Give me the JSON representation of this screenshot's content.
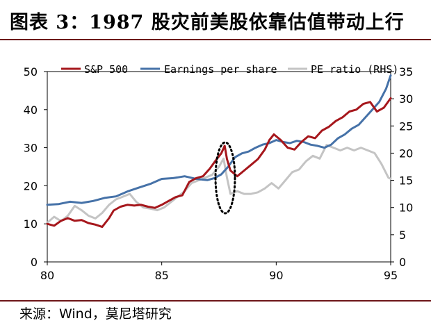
{
  "title": "图表 3：1987 股灾前美股依靠估值带动上行",
  "source": "来源：Wind，莫尼塔研究",
  "colors": {
    "sp500": "#a6171c",
    "earnings": "#4672a8",
    "pe": "#c4c4c4",
    "rule": "#6d1417",
    "ellipse": "#000000"
  },
  "chart_data": {
    "type": "line",
    "x_axis": {
      "ticks": [
        80,
        85,
        90,
        95
      ],
      "range": [
        80,
        95
      ]
    },
    "y_left": {
      "ticks": [
        0,
        10,
        20,
        30,
        40,
        50
      ],
      "range": [
        0,
        50
      ]
    },
    "y_right": {
      "ticks": [
        0,
        5,
        10,
        15,
        20,
        25,
        30,
        35
      ],
      "range": [
        0,
        35
      ]
    },
    "legend_position": "top",
    "grid": false,
    "annotation": "dotted ellipse around 1987 crash",
    "series": [
      {
        "name": "S&P 500",
        "axis": "left",
        "x": [
          80,
          80.3,
          80.6,
          80.9,
          81.2,
          81.5,
          81.8,
          82.1,
          82.4,
          82.7,
          82.9,
          83.2,
          83.5,
          83.8,
          84.1,
          84.4,
          84.7,
          85.0,
          85.3,
          85.6,
          85.9,
          86.2,
          86.5,
          86.8,
          87.1,
          87.4,
          87.6,
          87.75,
          87.85,
          88.0,
          88.3,
          88.6,
          88.9,
          89.2,
          89.5,
          89.7,
          89.9,
          90.2,
          90.5,
          90.8,
          91.1,
          91.4,
          91.7,
          92.0,
          92.3,
          92.6,
          92.9,
          93.2,
          93.5,
          93.8,
          94.1,
          94.4,
          94.7,
          95.0
        ],
        "values": [
          10.0,
          9.5,
          10.8,
          11.5,
          10.8,
          11.0,
          10.2,
          9.8,
          9.2,
          11.5,
          13.5,
          14.5,
          15.0,
          14.8,
          15.0,
          14.5,
          14.2,
          15.0,
          16.0,
          17.0,
          17.5,
          21.0,
          22.0,
          22.5,
          24.5,
          27.0,
          28.5,
          30.5,
          27.0,
          24.0,
          22.5,
          24.0,
          25.5,
          27.0,
          29.5,
          32.0,
          33.5,
          32.0,
          30.0,
          29.5,
          31.5,
          33.0,
          32.5,
          34.5,
          35.5,
          37.0,
          38.0,
          39.5,
          40.0,
          41.5,
          42.0,
          39.5,
          40.5,
          43.0
        ]
      },
      {
        "name": "Earnings per share",
        "axis": "left",
        "x": [
          80,
          80.5,
          81.0,
          81.5,
          82.0,
          82.5,
          83.0,
          83.5,
          84.0,
          84.5,
          85.0,
          85.5,
          86.0,
          86.5,
          87.0,
          87.3,
          87.6,
          87.9,
          88.2,
          88.5,
          88.8,
          89.1,
          89.4,
          89.7,
          90.0,
          90.3,
          90.6,
          90.9,
          91.2,
          91.5,
          91.8,
          92.1,
          92.4,
          92.7,
          93.0,
          93.3,
          93.6,
          93.9,
          94.2,
          94.5,
          94.8,
          95.0
        ],
        "values": [
          15.0,
          15.2,
          15.8,
          15.5,
          16.0,
          16.8,
          17.2,
          18.5,
          19.5,
          20.5,
          21.8,
          22.0,
          22.5,
          21.8,
          21.5,
          22.0,
          23.0,
          25.0,
          27.5,
          28.5,
          29.0,
          30.0,
          30.8,
          31.2,
          32.0,
          31.5,
          31.2,
          31.8,
          31.5,
          30.8,
          30.5,
          30.0,
          30.8,
          32.5,
          33.5,
          35.0,
          36.0,
          38.0,
          40.0,
          42.0,
          45.5,
          49.0
        ]
      },
      {
        "name": "PE ratio (RHS)",
        "axis": "right",
        "x": [
          80,
          80.3,
          80.6,
          80.9,
          81.2,
          81.5,
          81.8,
          82.1,
          82.4,
          82.7,
          83.0,
          83.3,
          83.6,
          83.9,
          84.2,
          84.5,
          84.8,
          85.1,
          85.4,
          85.7,
          86.0,
          86.3,
          86.6,
          86.9,
          87.2,
          87.5,
          87.7,
          87.85,
          88.0,
          88.3,
          88.6,
          88.9,
          89.2,
          89.5,
          89.8,
          90.1,
          90.4,
          90.7,
          91.0,
          91.3,
          91.6,
          91.9,
          92.2,
          92.5,
          92.8,
          93.1,
          93.4,
          93.7,
          94.0,
          94.3,
          94.6,
          94.9,
          95.0
        ],
        "values": [
          7.2,
          8.3,
          7.5,
          8.5,
          10.3,
          9.5,
          8.5,
          8.0,
          9.0,
          10.5,
          11.5,
          12.0,
          12.5,
          11.0,
          10.0,
          9.8,
          9.5,
          10.0,
          11.0,
          12.0,
          13.0,
          14.5,
          15.0,
          15.5,
          16.0,
          17.5,
          19.0,
          15.5,
          12.5,
          13.0,
          12.5,
          12.5,
          12.8,
          13.5,
          14.5,
          13.5,
          15.0,
          16.5,
          17.0,
          18.5,
          19.5,
          19.0,
          21.5,
          21.0,
          20.5,
          21.0,
          20.5,
          21.0,
          20.5,
          20.0,
          18.0,
          15.5,
          15.3
        ]
      }
    ]
  }
}
